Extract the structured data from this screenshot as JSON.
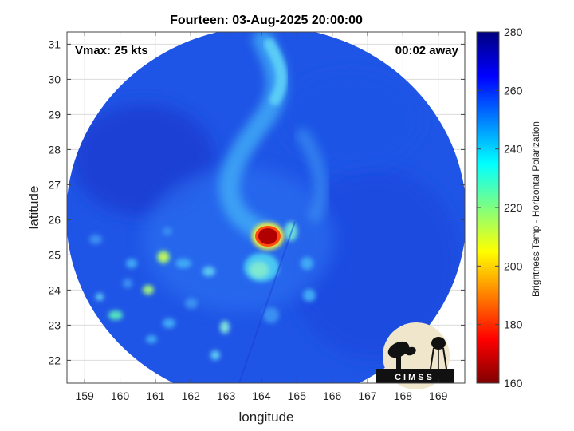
{
  "chart_data": {
    "type": "heatmap",
    "title": "Fourteen: 03-Aug-2025 20:00:00",
    "xlabel": "longitude",
    "ylabel": "latitude",
    "xlim": [
      158.5,
      169.75
    ],
    "ylim": [
      21.35,
      31.35
    ],
    "xticks": [
      159,
      160,
      161,
      162,
      163,
      164,
      165,
      166,
      167,
      168,
      169
    ],
    "yticks": [
      22,
      23,
      24,
      25,
      26,
      27,
      28,
      29,
      30,
      31
    ],
    "grid": true,
    "annotations": {
      "vmax": "Vmax: 25 kts",
      "time_offset": "00:02 away"
    },
    "colorbar": {
      "label": "Brightness Temp - Horizontal Polarization",
      "min": 160,
      "max": 280,
      "ticks": [
        160,
        180,
        200,
        220,
        240,
        260,
        280
      ],
      "colormap": "jet"
    },
    "swath": {
      "center_lon": 164.0,
      "center_lat": 26.0,
      "background_tb": 262,
      "features": [
        {
          "kind": "core",
          "lon": 164.1,
          "lat": 25.6,
          "tb": 165
        },
        {
          "kind": "convection",
          "lon": 163.9,
          "lat": 25.0,
          "tb": 232
        },
        {
          "kind": "convection",
          "lon": 164.6,
          "lat": 25.8,
          "tb": 234
        },
        {
          "kind": "convection",
          "lon": 161.0,
          "lat": 24.9,
          "tb": 222
        },
        {
          "kind": "convection",
          "lon": 160.7,
          "lat": 23.9,
          "tb": 224
        },
        {
          "kind": "convection",
          "lon": 159.5,
          "lat": 23.2,
          "tb": 232
        },
        {
          "kind": "convection",
          "lon": 162.8,
          "lat": 22.8,
          "tb": 235
        },
        {
          "kind": "spiral_band",
          "lon": 164.5,
          "lat": 30.5,
          "tb": 238
        },
        {
          "kind": "spiral_band",
          "lon": 163.1,
          "lat": 27.5,
          "tb": 244
        }
      ]
    }
  },
  "logo": {
    "text": "CIMSS"
  }
}
